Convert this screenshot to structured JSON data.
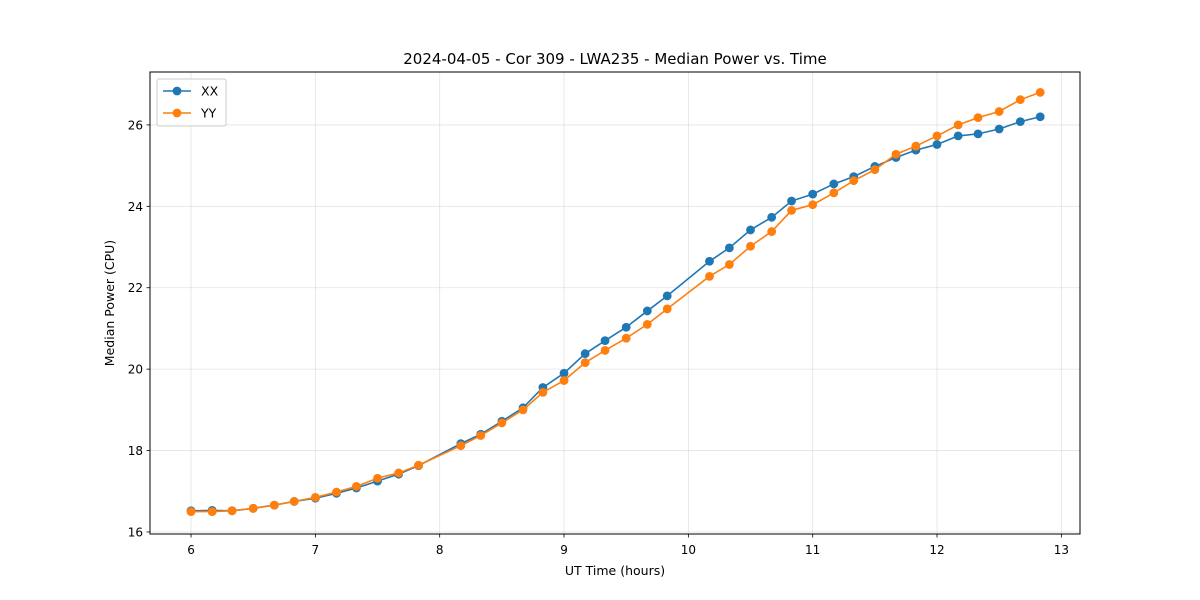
{
  "chart_data": {
    "type": "line",
    "title": "2024-04-05 - Cor 309 - LWA235 - Median Power vs. Time",
    "xlabel": "UT Time (hours)",
    "ylabel": "Median Power (CPU)",
    "xlim": [
      5.67,
      13.15
    ],
    "ylim": [
      15.95,
      27.3
    ],
    "xticks": [
      6,
      7,
      8,
      9,
      10,
      11,
      12,
      13
    ],
    "yticks": [
      16,
      18,
      20,
      22,
      24,
      26
    ],
    "grid": true,
    "legend_position": "top-left",
    "x": [
      6.0,
      6.17,
      6.33,
      6.5,
      6.67,
      6.83,
      7.0,
      7.17,
      7.33,
      7.5,
      7.67,
      7.83,
      8.17,
      8.33,
      8.5,
      8.67,
      8.83,
      9.0,
      9.17,
      9.33,
      9.5,
      9.67,
      9.83,
      10.17,
      10.33,
      10.5,
      10.67,
      10.83,
      11.0,
      11.17,
      11.33,
      11.5,
      11.67,
      11.83,
      12.0,
      12.17,
      12.33,
      12.5,
      12.67,
      12.83
    ],
    "series": [
      {
        "name": "XX",
        "color": "#1f77b4",
        "values": [
          16.52,
          16.53,
          16.52,
          16.58,
          16.66,
          16.75,
          16.83,
          16.95,
          17.08,
          17.25,
          17.42,
          17.63,
          18.17,
          18.4,
          18.72,
          19.05,
          19.55,
          19.9,
          20.38,
          20.7,
          21.03,
          21.43,
          21.8,
          22.65,
          22.98,
          23.42,
          23.73,
          24.13,
          24.3,
          24.55,
          24.73,
          24.98,
          25.2,
          25.38,
          25.52,
          25.73,
          25.78,
          25.9,
          26.08,
          26.2
        ]
      },
      {
        "name": "YY",
        "color": "#ff7f0e",
        "values": [
          16.5,
          16.5,
          16.52,
          16.58,
          16.66,
          16.75,
          16.85,
          16.98,
          17.12,
          17.32,
          17.45,
          17.64,
          18.12,
          18.37,
          18.68,
          19.0,
          19.43,
          19.72,
          20.16,
          20.46,
          20.76,
          21.1,
          21.48,
          22.28,
          22.57,
          23.02,
          23.38,
          23.9,
          24.04,
          24.33,
          24.63,
          24.9,
          25.28,
          25.48,
          25.73,
          26.0,
          26.18,
          26.33,
          26.62,
          26.8
        ]
      }
    ]
  }
}
